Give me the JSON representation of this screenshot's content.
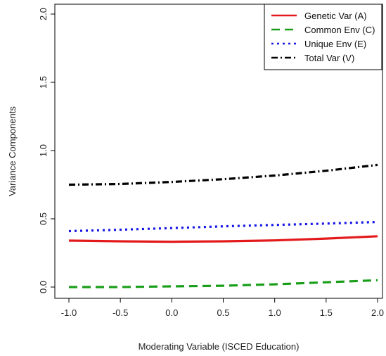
{
  "chart_data": {
    "type": "line",
    "xlabel": "Moderating Variable (ISCED Education)",
    "ylabel": "Variance Components",
    "xlim": [
      -1.0,
      2.0
    ],
    "ylim": [
      0.0,
      2.0
    ],
    "x_ticks": [
      "-1.0",
      "-0.5",
      "0.0",
      "0.5",
      "1.0",
      "1.5",
      "2.0"
    ],
    "y_ticks": [
      "0.0",
      "0.5",
      "1.0",
      "1.5",
      "2.0"
    ],
    "grid": false,
    "legend_position": "top-right",
    "x": [
      -1.0,
      -0.5,
      0.0,
      0.5,
      1.0,
      1.5,
      2.0
    ],
    "series": [
      {
        "name": "Genetic Var (A)",
        "color": "#e31a1c",
        "dash": "solid",
        "values": [
          0.34,
          0.335,
          0.332,
          0.335,
          0.342,
          0.355,
          0.372
        ]
      },
      {
        "name": "Common Env (C)",
        "color": "#1a9e1a",
        "dash": "dashed",
        "values": [
          0.0,
          0.0,
          0.005,
          0.01,
          0.02,
          0.035,
          0.05
        ]
      },
      {
        "name": "Unique Env (E)",
        "color": "#1515e6",
        "dash": "dotted",
        "values": [
          0.41,
          0.42,
          0.432,
          0.445,
          0.455,
          0.465,
          0.477
        ]
      },
      {
        "name": "Total Var (V)",
        "color": "#000000",
        "dash": "dotdash",
        "values": [
          0.75,
          0.755,
          0.77,
          0.79,
          0.817,
          0.852,
          0.895
        ]
      }
    ]
  }
}
